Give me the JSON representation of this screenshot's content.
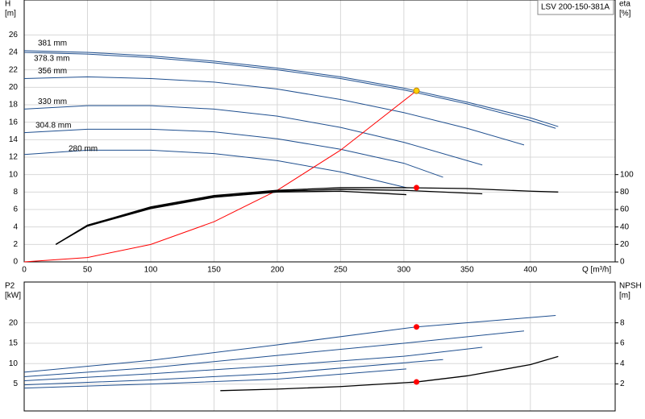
{
  "chart_data": [
    {
      "type": "line",
      "badge": "LSV 200-150-381A",
      "y_label": [
        "H",
        "[m]"
      ],
      "y2_label": [
        "eta",
        "[%]"
      ],
      "x_label": "Q [m³/h]",
      "xlim": [
        0,
        467
      ],
      "xticks": [
        0,
        50,
        100,
        150,
        200,
        250,
        300,
        350,
        400
      ],
      "ylim": [
        0,
        30
      ],
      "yticks": [
        0,
        2,
        4,
        6,
        8,
        10,
        12,
        14,
        16,
        18,
        20,
        22,
        24,
        26
      ],
      "y2lim": [
        0,
        300
      ],
      "y2ticks": [
        0,
        20,
        40,
        60,
        80,
        100
      ],
      "grid": true,
      "series": [
        {
          "name": "381 mm",
          "color": "#1f4f8f",
          "x": [
            0,
            50,
            100,
            150,
            200,
            250,
            300,
            350,
            400,
            422
          ],
          "values": [
            24.2,
            24.0,
            23.6,
            23.0,
            22.2,
            21.2,
            19.9,
            18.3,
            16.5,
            15.5
          ]
        },
        {
          "name": "378.3 mm",
          "color": "#1f4f8f",
          "x": [
            0,
            50,
            100,
            150,
            200,
            250,
            300,
            350,
            400,
            420
          ],
          "values": [
            24.0,
            23.8,
            23.4,
            22.8,
            22.0,
            21.0,
            19.7,
            18.1,
            16.2,
            15.3
          ]
        },
        {
          "name": "356 mm",
          "color": "#1f4f8f",
          "x": [
            0,
            50,
            100,
            150,
            200,
            250,
            300,
            350,
            395
          ],
          "values": [
            21.0,
            21.2,
            21.0,
            20.6,
            19.8,
            18.6,
            17.1,
            15.3,
            13.4
          ]
        },
        {
          "name": "330 mm",
          "color": "#1f4f8f",
          "x": [
            0,
            50,
            100,
            150,
            200,
            250,
            300,
            362
          ],
          "values": [
            17.5,
            17.9,
            17.9,
            17.5,
            16.7,
            15.4,
            13.7,
            11.1
          ]
        },
        {
          "name": "304.8 mm",
          "color": "#1f4f8f",
          "x": [
            0,
            50,
            100,
            150,
            200,
            250,
            300,
            331
          ],
          "values": [
            14.8,
            15.2,
            15.2,
            14.9,
            14.1,
            12.9,
            11.3,
            9.7
          ]
        },
        {
          "name": "280 mm",
          "color": "#1f4f8f",
          "x": [
            0,
            50,
            100,
            150,
            200,
            250,
            302
          ],
          "values": [
            12.3,
            12.8,
            12.8,
            12.4,
            11.6,
            10.3,
            8.5
          ]
        },
        {
          "color": "#ff0000",
          "x": [
            0,
            50,
            100,
            150,
            200,
            250,
            310
          ],
          "values": [
            0,
            0.5,
            2.0,
            4.6,
            8.2,
            12.8,
            19.6
          ]
        },
        {
          "axis": "y2",
          "color": "#000000",
          "x": [
            25,
            50,
            100,
            150,
            200,
            250,
            300,
            350,
            400,
            422
          ],
          "values": [
            20,
            42,
            63,
            76,
            82,
            85,
            85,
            84,
            81,
            80
          ]
        },
        {
          "axis": "y2",
          "color": "#000000",
          "x": [
            25,
            50,
            100,
            150,
            200,
            250,
            300,
            362
          ],
          "values": [
            20,
            42,
            62,
            75,
            81,
            83,
            82,
            78
          ]
        },
        {
          "axis": "y2",
          "color": "#000000",
          "x": [
            25,
            50,
            100,
            150,
            200,
            250,
            302
          ],
          "values": [
            20,
            41,
            61,
            74,
            80,
            81,
            77
          ]
        }
      ],
      "markers": [
        {
          "x": 310,
          "y": 19.6,
          "color": "#ffd200"
        },
        {
          "x": 310,
          "y": 85,
          "axis": "y2",
          "color": "#ff0000"
        }
      ]
    },
    {
      "type": "line",
      "y_label": [
        "P2",
        "[kW]"
      ],
      "y2_label": [
        "NPSH",
        "[m]"
      ],
      "xlim": [
        0,
        467
      ],
      "xticks": [
        0,
        50,
        100,
        150,
        200,
        250,
        300,
        350,
        400
      ],
      "ylim": [
        -1.6,
        30
      ],
      "yticks": [
        5,
        10,
        15,
        20
      ],
      "y2lim": [
        -0.64,
        12
      ],
      "y2ticks": [
        2,
        4,
        6,
        8
      ],
      "grid": true,
      "series": [
        {
          "color": "#1f4f8f",
          "x": [
            0,
            100,
            200,
            310,
            420
          ],
          "values": [
            7.9,
            10.8,
            14.6,
            19,
            21.8
          ]
        },
        {
          "color": "#1f4f8f",
          "x": [
            0,
            100,
            200,
            300,
            395
          ],
          "values": [
            6.8,
            9,
            12,
            15,
            18
          ]
        },
        {
          "color": "#1f4f8f",
          "x": [
            0,
            100,
            200,
            300,
            362
          ],
          "values": [
            5.8,
            7.5,
            9.5,
            11.8,
            14
          ]
        },
        {
          "color": "#1f4f8f",
          "x": [
            0,
            100,
            200,
            331
          ],
          "values": [
            4.8,
            6,
            7.6,
            11
          ]
        },
        {
          "color": "#1f4f8f",
          "x": [
            0,
            100,
            200,
            302
          ],
          "values": [
            4,
            5,
            6.2,
            8.7
          ]
        },
        {
          "axis": "y2",
          "color": "#000000",
          "x": [
            155,
            200,
            250,
            310,
            350,
            400,
            422
          ],
          "values": [
            1.35,
            1.5,
            1.75,
            2.2,
            2.8,
            3.9,
            4.7
          ]
        }
      ],
      "markers": [
        {
          "x": 310,
          "y": 19,
          "color": "#ff0000"
        },
        {
          "x": 310,
          "y": 2.2,
          "axis": "y2",
          "color": "#ff0000"
        }
      ]
    }
  ]
}
